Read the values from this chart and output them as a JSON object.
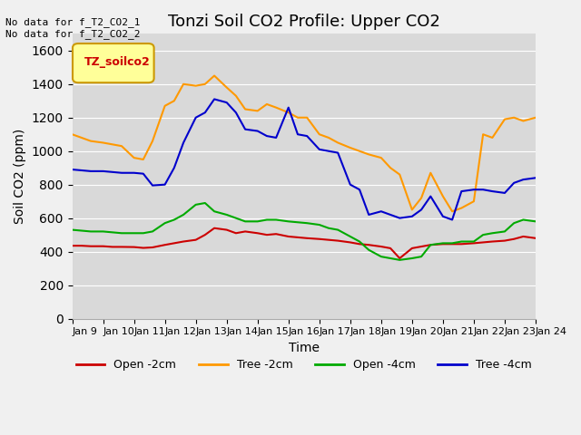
{
  "title": "Tonzi Soil CO2 Profile: Upper CO2",
  "xlabel": "Time",
  "ylabel": "Soil CO2 (ppm)",
  "ylim": [
    0,
    1700
  ],
  "yticks": [
    0,
    200,
    400,
    600,
    800,
    1000,
    1200,
    1400,
    1600
  ],
  "background_color": "#d9d9d9",
  "annotation_text": "No data for f_T2_CO2_1\nNo data for f_T2_CO2_2",
  "legend_box_label": "TZ_soilco2",
  "legend_box_color": "#ffff99",
  "legend_box_edge": "#cc9900",
  "x_labels": [
    "Jan 9",
    "Jan 10",
    "Jan 11",
    "Jan 12",
    "Jan 13",
    "Jan 14",
    "Jan 15",
    "Jan 16",
    "Jan 17",
    "Jan 18",
    "Jan 19",
    "Jan 20",
    "Jan 21",
    "Jan 22",
    "Jan 23",
    "Jan 24"
  ],
  "x_positions": [
    9,
    10,
    11,
    12,
    13,
    14,
    15,
    16,
    17,
    18,
    19,
    20,
    21,
    22,
    23,
    24
  ],
  "series": {
    "open_2cm": {
      "label": "Open -2cm",
      "color": "#cc0000",
      "x": [
        9,
        9.3,
        9.6,
        10,
        10.3,
        10.6,
        11,
        11.3,
        11.6,
        12,
        12.3,
        12.6,
        13,
        13.3,
        13.6,
        14,
        14.3,
        14.6,
        15,
        15.3,
        15.6,
        16,
        16.3,
        16.6,
        17,
        17.3,
        17.6,
        18,
        18.3,
        18.6,
        19,
        19.3,
        19.6,
        20,
        20.3,
        20.6,
        21,
        21.3,
        21.6,
        22,
        22.3,
        22.6,
        23,
        23.3,
        23.6,
        24
      ],
      "y": [
        435,
        435,
        432,
        432,
        428,
        428,
        427,
        422,
        425,
        440,
        450,
        460,
        470,
        500,
        540,
        530,
        510,
        520,
        510,
        500,
        505,
        490,
        485,
        480,
        475,
        470,
        465,
        455,
        445,
        440,
        430,
        420,
        360,
        420,
        430,
        440,
        445,
        445,
        445,
        450,
        455,
        460,
        465,
        475,
        490,
        480
      ]
    },
    "tree_2cm": {
      "label": "Tree -2cm",
      "color": "#ff9900",
      "x": [
        9,
        9.3,
        9.6,
        10,
        10.3,
        10.6,
        11,
        11.3,
        11.6,
        12,
        12.3,
        12.6,
        13,
        13.3,
        13.6,
        14,
        14.3,
        14.6,
        15,
        15.3,
        15.6,
        16,
        16.3,
        16.6,
        17,
        17.3,
        17.6,
        18,
        18.3,
        18.6,
        19,
        19.3,
        19.6,
        20,
        20.3,
        20.6,
        21,
        21.3,
        21.6,
        22,
        22.3,
        22.6,
        23,
        23.3,
        23.6,
        24
      ],
      "y": [
        1100,
        1080,
        1060,
        1050,
        1040,
        1030,
        960,
        950,
        1060,
        1270,
        1300,
        1400,
        1390,
        1400,
        1450,
        1380,
        1330,
        1250,
        1240,
        1280,
        1260,
        1230,
        1200,
        1200,
        1100,
        1080,
        1050,
        1020,
        1000,
        980,
        960,
        900,
        860,
        650,
        720,
        870,
        730,
        640,
        660,
        700,
        1100,
        1080,
        1190,
        1200,
        1180,
        1200
      ]
    },
    "open_4cm": {
      "label": "Open -4cm",
      "color": "#00aa00",
      "x": [
        9,
        9.3,
        9.6,
        10,
        10.3,
        10.6,
        11,
        11.3,
        11.6,
        12,
        12.3,
        12.6,
        13,
        13.3,
        13.6,
        14,
        14.3,
        14.6,
        15,
        15.3,
        15.6,
        16,
        16.3,
        16.6,
        17,
        17.3,
        17.6,
        18,
        18.3,
        18.6,
        19,
        19.3,
        19.6,
        20,
        20.3,
        20.6,
        21,
        21.3,
        21.6,
        22,
        22.3,
        22.6,
        23,
        23.3,
        23.6,
        24
      ],
      "y": [
        530,
        525,
        520,
        520,
        515,
        510,
        510,
        510,
        520,
        570,
        590,
        620,
        680,
        690,
        640,
        620,
        600,
        580,
        580,
        590,
        590,
        580,
        575,
        570,
        560,
        540,
        530,
        490,
        460,
        410,
        370,
        360,
        350,
        360,
        370,
        440,
        450,
        450,
        460,
        460,
        500,
        510,
        520,
        570,
        590,
        580
      ]
    },
    "tree_4cm": {
      "label": "Tree -4cm",
      "color": "#0000cc",
      "x": [
        9,
        9.3,
        9.6,
        10,
        10.3,
        10.6,
        11,
        11.3,
        11.6,
        12,
        12.3,
        12.6,
        13,
        13.3,
        13.6,
        14,
        14.3,
        14.6,
        15,
        15.3,
        15.6,
        16,
        16.3,
        16.6,
        17,
        17.3,
        17.6,
        18,
        18.3,
        18.6,
        19,
        19.3,
        19.6,
        20,
        20.3,
        20.6,
        21,
        21.3,
        21.6,
        22,
        22.3,
        22.6,
        23,
        23.3,
        23.6,
        24
      ],
      "y": [
        890,
        885,
        880,
        880,
        875,
        870,
        870,
        865,
        795,
        800,
        900,
        1050,
        1200,
        1230,
        1310,
        1290,
        1230,
        1130,
        1120,
        1090,
        1080,
        1260,
        1100,
        1090,
        1010,
        1000,
        990,
        800,
        770,
        620,
        640,
        620,
        600,
        610,
        650,
        730,
        610,
        590,
        760,
        770,
        770,
        760,
        750,
        810,
        830,
        840
      ]
    }
  }
}
